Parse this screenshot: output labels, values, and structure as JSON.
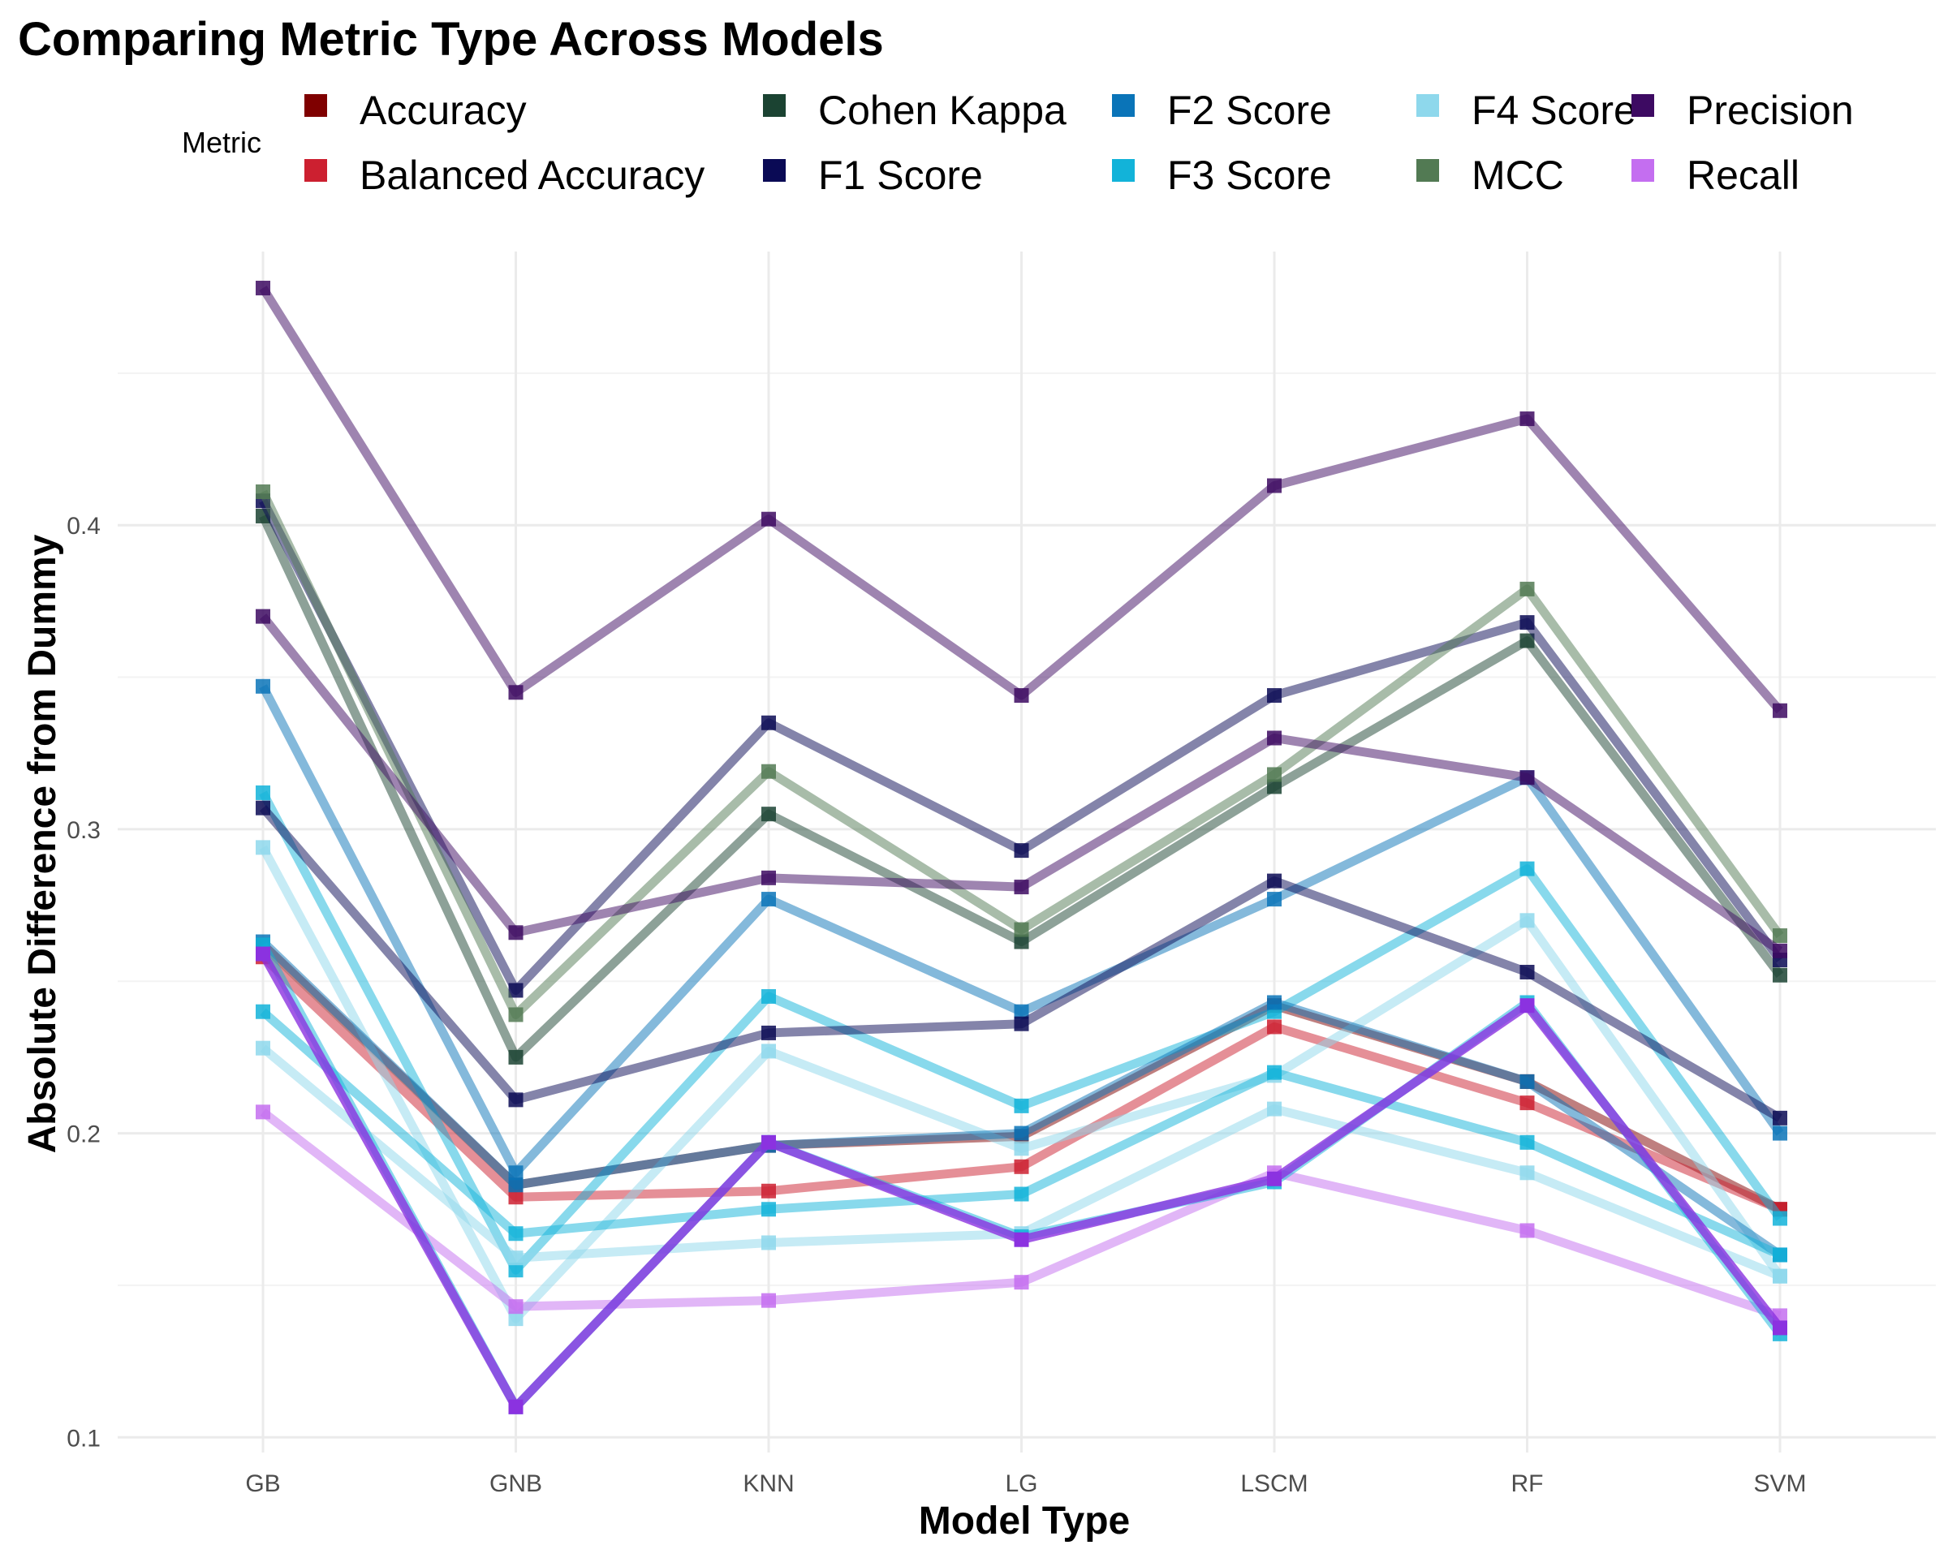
{
  "chart_data": {
    "type": "line",
    "title": "Comparing Metric Type Across Models",
    "xlabel": "Model Type",
    "ylabel": "Absolute Difference from Dummy",
    "categories": [
      "GB",
      "GNB",
      "KNN",
      "LG",
      "LSCM",
      "RF",
      "SVM"
    ],
    "ylim": [
      0.095,
      0.49
    ],
    "yticks": [
      0.1,
      0.2,
      0.3,
      0.4
    ],
    "ytick_labels": [
      "0.1",
      "0.2",
      "0.3",
      "0.4"
    ],
    "grid": true,
    "legend": {
      "title": "Metric",
      "position": "top"
    },
    "series": [
      {
        "name": "Accuracy",
        "color": "#7f0000",
        "opacity": 0.5,
        "values": [
          0.262,
          0.183,
          0.196,
          0.199,
          0.242,
          0.217,
          0.175
        ]
      },
      {
        "name": "Balanced Accuracy",
        "color": "#cc2030",
        "opacity": 0.5,
        "values": [
          0.258,
          0.179,
          0.181,
          0.189,
          0.235,
          0.21,
          0.175
        ]
      },
      {
        "name": "Cohen Kappa",
        "color": "#1b4332",
        "opacity": 0.5,
        "values": [
          0.403,
          0.225,
          0.305,
          0.263,
          0.314,
          0.362,
          0.252
        ]
      },
      {
        "name": "F1 Score",
        "color": "#0a0a55",
        "opacity": 0.5,
        "values": [
          0.408,
          0.247,
          0.335,
          0.293,
          0.344,
          0.368,
          0.257
        ]
      },
      {
        "name": "F2 Score",
        "color": "#0a74b8",
        "opacity": 0.5,
        "values": [
          0.347,
          0.187,
          0.277,
          0.24,
          0.277,
          0.317,
          0.2
        ]
      },
      {
        "name": "F3 Score",
        "color": "#12b3d9",
        "opacity": 0.5,
        "values": [
          0.312,
          0.155,
          0.245,
          0.209,
          0.24,
          0.287,
          0.172
        ]
      },
      {
        "name": "F4 Score",
        "color": "#8ed8ec",
        "opacity": 0.5,
        "values": [
          0.294,
          0.139,
          0.227,
          0.195,
          0.219,
          0.27,
          0.153
        ]
      },
      {
        "name": "MCC",
        "color": "#527a53",
        "opacity": 0.5,
        "values": [
          0.411,
          0.239,
          0.319,
          0.267,
          0.318,
          0.379,
          0.265
        ]
      },
      {
        "name": "Precision",
        "color": "#3d0a62",
        "opacity": 0.5,
        "values": [
          0.478,
          0.345,
          0.402,
          0.344,
          0.413,
          0.435,
          0.339
        ]
      },
      {
        "name": "Recall",
        "color": "#c46ef0",
        "opacity": 0.5,
        "values": [
          0.207,
          0.143,
          0.145,
          0.151,
          0.187,
          0.168,
          0.14
        ]
      },
      {
        "name": "",
        "color": "#3d0a62",
        "opacity": 0.5,
        "values": [
          0.37,
          0.266,
          0.284,
          0.281,
          0.33,
          0.317,
          0.26
        ]
      },
      {
        "name": "",
        "color": "#0a0a55",
        "opacity": 0.5,
        "values": [
          0.307,
          0.211,
          0.233,
          0.236,
          0.283,
          0.253,
          0.205
        ]
      },
      {
        "name": "",
        "color": "#0a74b8",
        "opacity": 0.5,
        "values": [
          0.263,
          0.183,
          0.196,
          0.2,
          0.243,
          0.217,
          0.16
        ]
      },
      {
        "name": "",
        "color": "#12b3d9",
        "opacity": 0.5,
        "values": [
          0.24,
          0.167,
          0.175,
          0.18,
          0.22,
          0.197,
          0.16
        ]
      },
      {
        "name": "",
        "color": "#8ed8ec",
        "opacity": 0.5,
        "values": [
          0.228,
          0.159,
          0.164,
          0.167,
          0.208,
          0.187,
          0.153
        ]
      },
      {
        "name": "",
        "color": "#12b3d9",
        "opacity": 0.5,
        "values": [
          0.262,
          0.11,
          0.197,
          0.166,
          0.184,
          0.243,
          0.134
        ]
      },
      {
        "name": "",
        "color": "#8b32e0",
        "opacity": 0.8,
        "values": [
          0.259,
          0.11,
          0.197,
          0.165,
          0.185,
          0.242,
          0.136
        ]
      }
    ]
  }
}
